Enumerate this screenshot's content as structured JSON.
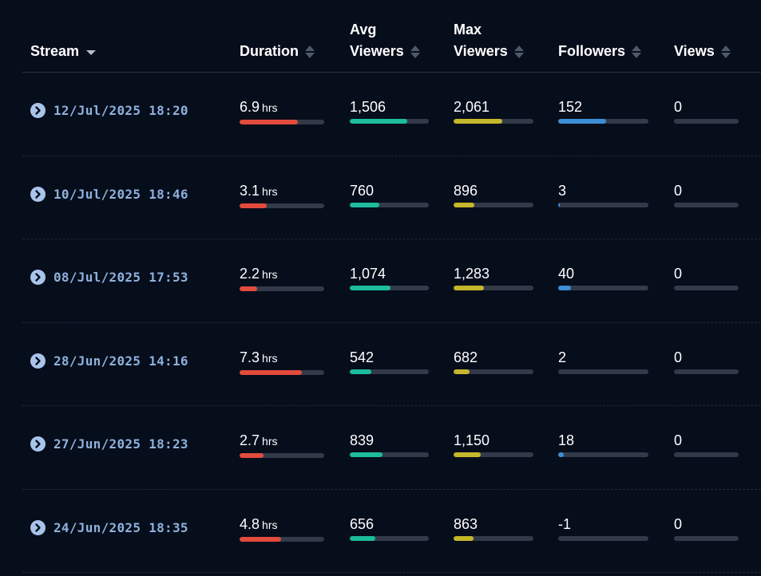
{
  "headers": {
    "stream": "Stream",
    "duration": "Duration",
    "avg_viewers": "Avg\nViewers",
    "max_viewers": "Max\nViewers",
    "followers": "Followers",
    "views": "Views"
  },
  "colors": {
    "duration": "#e34b3c",
    "avg_viewers": "#1cbc9c",
    "max_viewers": "#c5b72a",
    "followers": "#3b8fd6",
    "views": "#3b8fd6",
    "bar_track": "#323a49"
  },
  "duration_unit": "hrs",
  "rows": [
    {
      "stream": "12/Jul/2025 18:20",
      "duration": "6.9",
      "avg_viewers": "1,506",
      "max_viewers": "2,061",
      "followers": "152",
      "views": "0",
      "fill": {
        "duration": 0.69,
        "avg_viewers": 0.73,
        "max_viewers": 0.61,
        "followers": 0.53,
        "views": 0
      }
    },
    {
      "stream": "10/Jul/2025 18:46",
      "duration": "3.1",
      "avg_viewers": "760",
      "max_viewers": "896",
      "followers": "3",
      "views": "0",
      "fill": {
        "duration": 0.32,
        "avg_viewers": 0.37,
        "max_viewers": 0.26,
        "followers": 0.01,
        "views": 0
      }
    },
    {
      "stream": "08/Jul/2025 17:53",
      "duration": "2.2",
      "avg_viewers": "1,074",
      "max_viewers": "1,283",
      "followers": "40",
      "views": "0",
      "fill": {
        "duration": 0.21,
        "avg_viewers": 0.52,
        "max_viewers": 0.38,
        "followers": 0.14,
        "views": 0
      }
    },
    {
      "stream": "28/Jun/2025 14:16",
      "duration": "7.3",
      "avg_viewers": "542",
      "max_viewers": "682",
      "followers": "2",
      "views": "0",
      "fill": {
        "duration": 0.74,
        "avg_viewers": 0.27,
        "max_viewers": 0.2,
        "followers": 0.0,
        "views": 0
      }
    },
    {
      "stream": "27/Jun/2025 18:23",
      "duration": "2.7",
      "avg_viewers": "839",
      "max_viewers": "1,150",
      "followers": "18",
      "views": "0",
      "fill": {
        "duration": 0.28,
        "avg_viewers": 0.41,
        "max_viewers": 0.34,
        "followers": 0.06,
        "views": 0
      }
    },
    {
      "stream": "24/Jun/2025 18:35",
      "duration": "4.8",
      "avg_viewers": "656",
      "max_viewers": "863",
      "followers": "-1",
      "views": "0",
      "fill": {
        "duration": 0.49,
        "avg_viewers": 0.32,
        "max_viewers": 0.25,
        "followers": 0.0,
        "views": 0
      }
    }
  ]
}
